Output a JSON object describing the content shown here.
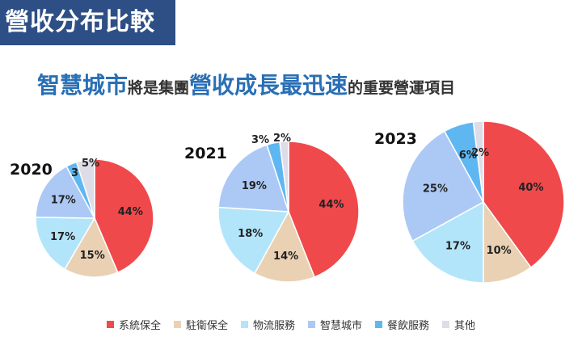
{
  "page_title": "營收分布比較",
  "headline": {
    "part1": "智慧城市",
    "part2": "將是集團",
    "part3": "營收成長最迅速",
    "part4": "的重要營運項目"
  },
  "chart_data": {
    "type": "pie",
    "categories": [
      "系統保全",
      "駐衛保全",
      "物流服務",
      "智慧城市",
      "餐飲服務",
      "其他"
    ],
    "colors": [
      "#f0494c",
      "#ead1b4",
      "#b3e5fa",
      "#acc9f5",
      "#5fb7f2",
      "#dedde7"
    ],
    "series": [
      {
        "name": "2020",
        "values": [
          44,
          15,
          17,
          17,
          3,
          5
        ],
        "labels": [
          "44%",
          "15%",
          "17%",
          "17%",
          "3%",
          "5%"
        ]
      },
      {
        "name": "2021",
        "values": [
          44,
          14,
          18,
          19,
          3,
          2
        ],
        "labels": [
          "44%",
          "14%",
          "18%",
          "19%",
          "3%",
          "2%"
        ]
      },
      {
        "name": "2023",
        "values": [
          40,
          10,
          17,
          25,
          6,
          2
        ],
        "labels": [
          "40%",
          "10%",
          "17%",
          "25%",
          "6%",
          "2%"
        ]
      }
    ],
    "legend_position": "bottom"
  }
}
